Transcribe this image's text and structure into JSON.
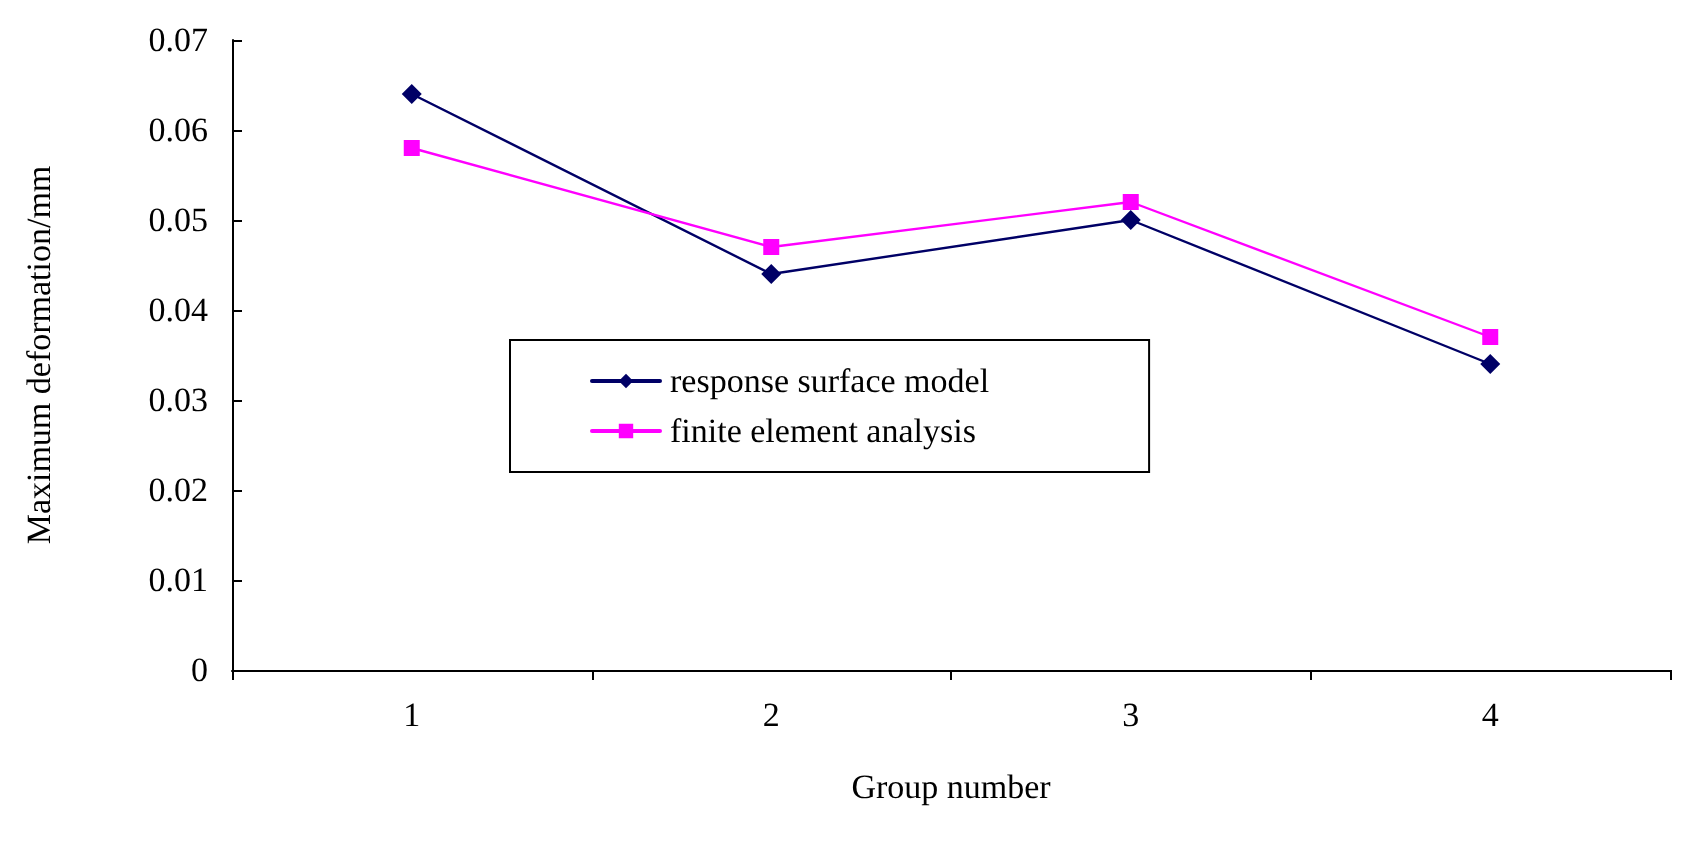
{
  "chart_data": {
    "type": "line",
    "xlabel": "Group number",
    "ylabel": "Maximum deformation/mm",
    "categories": [
      "1",
      "2",
      "3",
      "4"
    ],
    "series": [
      {
        "name": "response surface model",
        "color": "#000066",
        "marker": "diamond",
        "values": [
          0.064,
          0.044,
          0.05,
          0.034
        ]
      },
      {
        "name": "finite element analysis",
        "color": "#ff00ff",
        "marker": "square",
        "values": [
          0.058,
          0.047,
          0.052,
          0.037
        ]
      }
    ],
    "ylim": [
      0,
      0.07
    ],
    "yticks": [
      0,
      0.01,
      0.02,
      0.03,
      0.04,
      0.05,
      0.06,
      0.07
    ],
    "grid": false,
    "legend": "center",
    "line_style": "solid"
  }
}
